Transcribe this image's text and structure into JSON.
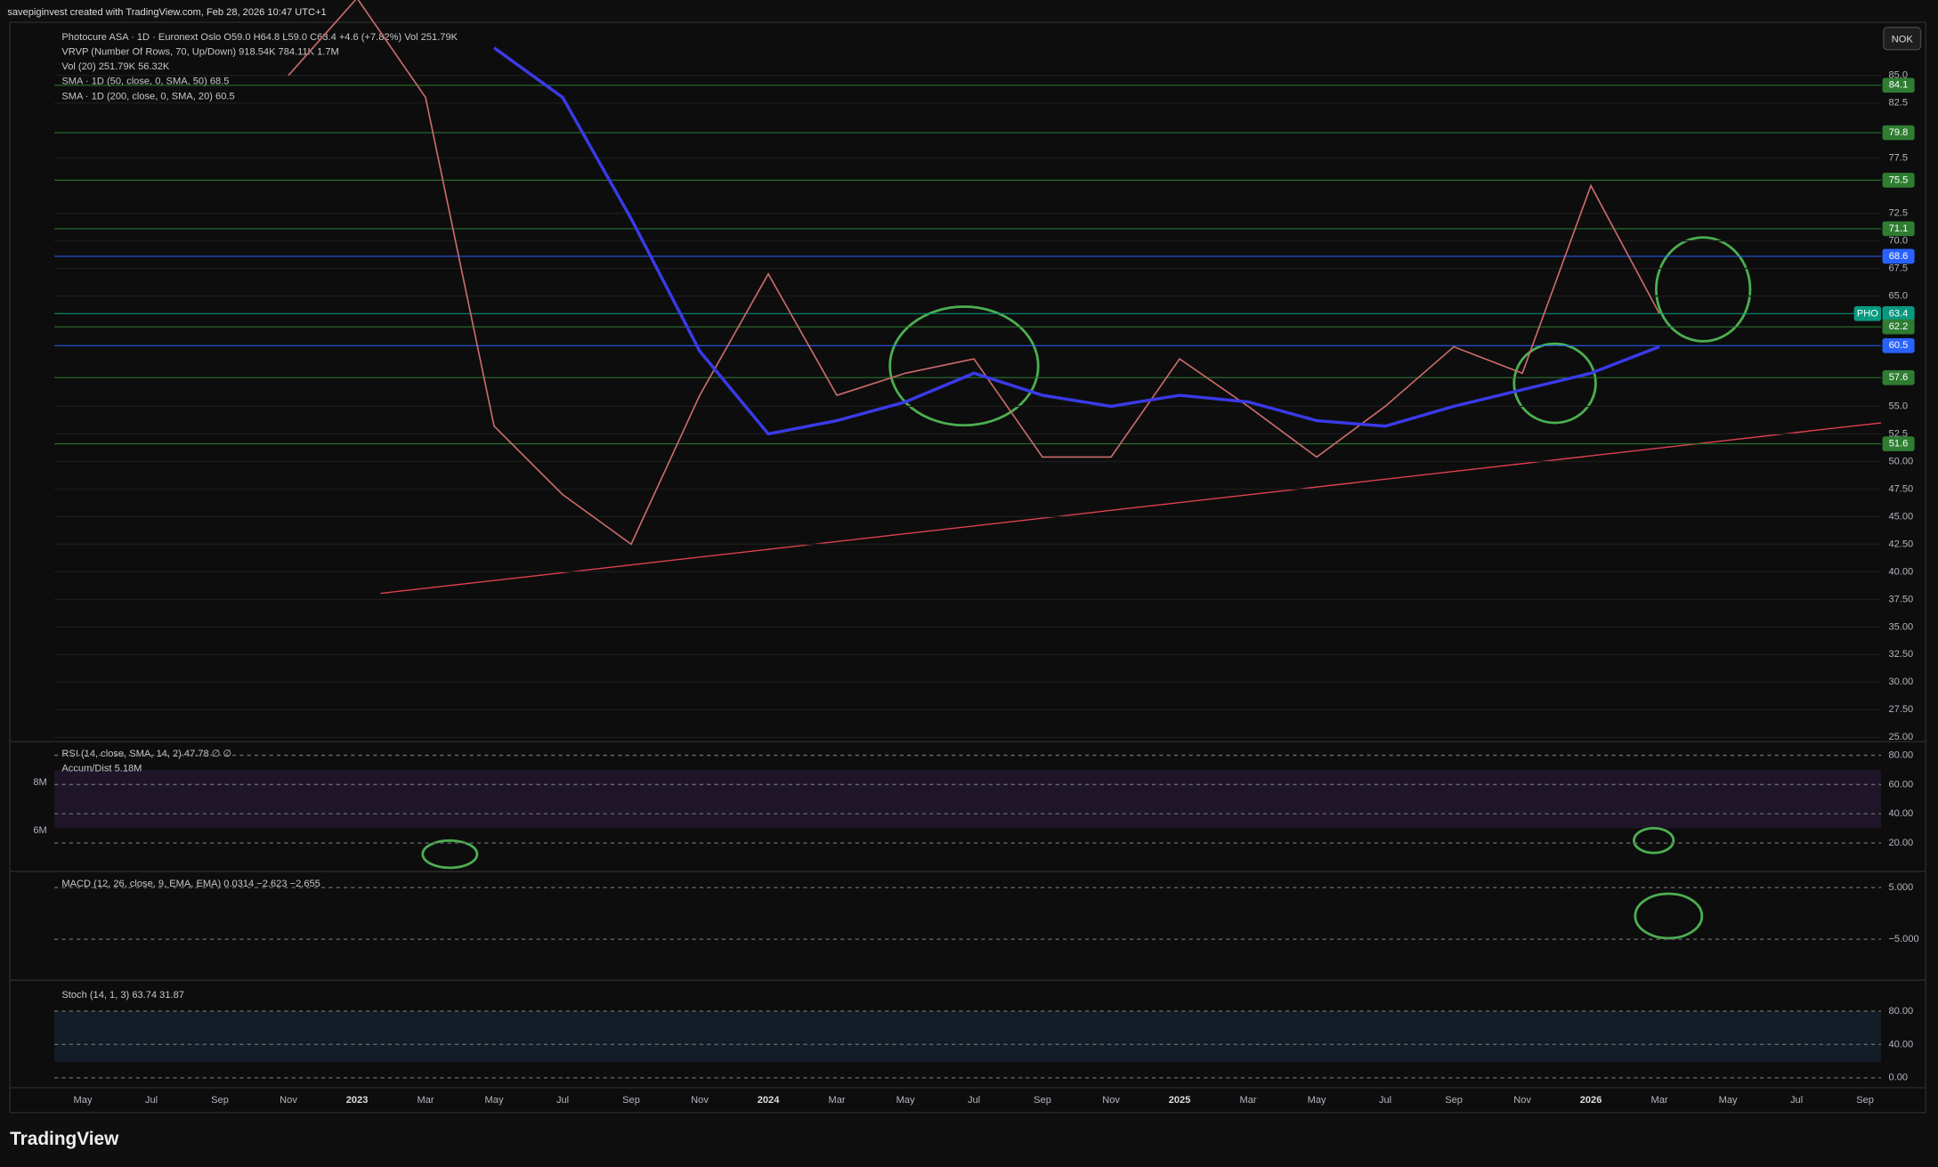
{
  "header": "savepiginvest created with TradingView.com, Feb 28, 2026 10:47 UTC+1",
  "currency": "NOK",
  "footer": "TradingView",
  "legend": [
    "Photocure ASA · 1D · Euronext Oslo  O59.0 H64.8 L59.0 C63.4 +4.6 (+7.82%)  Vol 251.79K",
    "VRVP (Number Of Rows, 70, Up/Down)  918.54K  784.11K  1.7M",
    "Vol (20)  251.79K  56.32K",
    "SMA · 1D (50, close, 0, SMA, 50)  68.5",
    "SMA · 1D (200, close, 0, SMA, 20)  60.5"
  ],
  "chart_data": {
    "type": "line",
    "categories": [
      "May",
      "Jul",
      "Sep",
      "Nov",
      "2023",
      "Mar",
      "May",
      "Jul",
      "Sep",
      "Nov",
      "2024",
      "Mar",
      "May",
      "Jul",
      "Sep",
      "Nov",
      "2025",
      "Mar",
      "May",
      "Jul",
      "Sep",
      "Nov",
      "2026",
      "Mar",
      "May",
      "Jul",
      "Sep"
    ],
    "series": [
      {
        "name": "Photocure ASA",
        "color": "#c96a6a",
        "values": [
          null,
          null,
          null,
          85,
          92,
          83,
          53.2,
          47,
          42.5,
          56,
          67,
          56,
          58,
          59.3,
          50.4,
          50.4,
          59.3,
          55,
          50.4,
          55,
          60.4,
          58,
          75,
          63.4,
          null,
          null,
          null
        ]
      },
      {
        "name": "SMA 200",
        "color": "#3a3ae8",
        "values": [
          null,
          null,
          null,
          null,
          null,
          null,
          87.5,
          83,
          72,
          60,
          52.5,
          53.7,
          55.4,
          58,
          56,
          55,
          56,
          55.4,
          53.7,
          53.2,
          55,
          56.5,
          58,
          60.4,
          null,
          null,
          null
        ]
      }
    ],
    "ylim": [
      24.6,
      89.8
    ],
    "yticks": [
      {
        "value": 85,
        "label": "85.0"
      },
      {
        "value": 82.5,
        "label": "82.5"
      },
      {
        "value": 77.5,
        "label": "77.5"
      },
      {
        "value": 72.5,
        "label": "72.5"
      },
      {
        "value": 70,
        "label": "70.0"
      },
      {
        "value": 67.5,
        "label": "67.5"
      },
      {
        "value": 65,
        "label": "65.0"
      },
      {
        "value": 55,
        "label": "55.0"
      },
      {
        "value": 52.5,
        "label": "52.5"
      },
      {
        "value": 50,
        "label": "50.00"
      },
      {
        "value": 47.5,
        "label": "47.50"
      },
      {
        "value": 45,
        "label": "45.00"
      },
      {
        "value": 42.5,
        "label": "42.50"
      },
      {
        "value": 40,
        "label": "40.00"
      },
      {
        "value": 37.5,
        "label": "37.50"
      },
      {
        "value": 35,
        "label": "35.00"
      },
      {
        "value": 32.5,
        "label": "32.50"
      },
      {
        "value": 30,
        "label": "30.00"
      },
      {
        "value": 27.5,
        "label": "27.50"
      },
      {
        "value": 25,
        "label": "25.00"
      }
    ],
    "price_levels": [
      {
        "value": 84.1,
        "color": "#2e7d32"
      },
      {
        "value": 79.8,
        "color": "#2e7d32"
      },
      {
        "value": 75.5,
        "color": "#2e7d32"
      },
      {
        "value": 71.1,
        "color": "#2e7d32"
      },
      {
        "value": 68.6,
        "color": "#2962ff"
      },
      {
        "value": 63.4,
        "color": "#089981",
        "symbol": "PHO"
      },
      {
        "value": 62.2,
        "color": "#2e7d32"
      },
      {
        "value": 60.5,
        "color": "#2962ff"
      },
      {
        "value": 57.6,
        "color": "#2e7d32"
      },
      {
        "value": 51.6,
        "color": "#2e7d32"
      }
    ]
  },
  "rsi": {
    "title": "RSI (14, close, SMA, 14, 2)  47.78  ∅  ∅",
    "subtitle": "Accum/Dist  5.18M",
    "left_ticks": [
      "8M",
      "6M"
    ],
    "ylim": [
      0.6,
      89.3
    ],
    "yticks": [
      {
        "value": 80,
        "label": "80.00"
      },
      {
        "value": 60,
        "label": "60.00"
      },
      {
        "value": 40,
        "label": "40.00"
      },
      {
        "value": 20,
        "label": "20.00"
      }
    ]
  },
  "macd": {
    "title": "MACD (12, 26, close, 9, EMA, EMA)  0.0314  −2.623  −2.655",
    "ylim": [
      -12.9,
      8.1
    ],
    "yticks": [
      {
        "value": 5,
        "label": "5.000"
      },
      {
        "value": -5,
        "label": "−5.000"
      }
    ]
  },
  "stoch": {
    "title": "Stoch (14, 1, 3)  63.74  31.87",
    "ylim": [
      -11.9,
      117
    ],
    "yticks": [
      {
        "value": 80,
        "label": "80.00"
      },
      {
        "value": 40,
        "label": "40.00"
      },
      {
        "value": 0,
        "label": "0.00"
      }
    ]
  }
}
